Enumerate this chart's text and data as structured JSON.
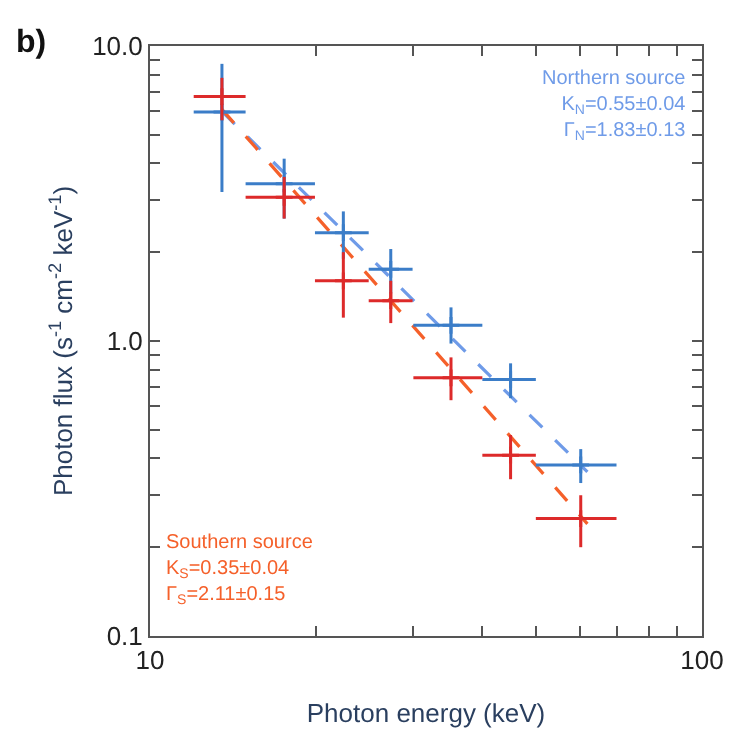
{
  "chart_data": {
    "type": "scatter",
    "xlabel": "Photon energy (keV)",
    "ylabel": "Photon flux (s$^{-1}$ cm$^{-2}$ keV$^{-1}$)",
    "log": "xy",
    "xlim": [
      10,
      100
    ],
    "ylim": [
      0.1,
      10
    ],
    "xticks": [
      10,
      {
        "value": 20,
        "label": null
      },
      {
        "value": 30,
        "label": null
      },
      {
        "value": 40,
        "label": null
      },
      {
        "value": 50,
        "label": null
      },
      {
        "value": 60,
        "label": null
      },
      {
        "value": 70,
        "label": null
      },
      {
        "value": 80,
        "label": null
      },
      {
        "value": 90,
        "label": null
      },
      100
    ],
    "yticks": [
      {
        "value": 0.1,
        "label": "0.1"
      },
      {
        "value": 0.2,
        "label": null
      },
      {
        "value": 0.3,
        "label": null
      },
      {
        "value": 0.4,
        "label": null
      },
      {
        "value": 0.5,
        "label": null
      },
      {
        "value": 0.6,
        "label": null
      },
      {
        "value": 0.7,
        "label": null
      },
      {
        "value": 0.8,
        "label": null
      },
      {
        "value": 0.9,
        "label": null
      },
      {
        "value": 1,
        "label": "1.0"
      },
      {
        "value": 2,
        "label": null
      },
      {
        "value": 3,
        "label": null
      },
      {
        "value": 4,
        "label": null
      },
      {
        "value": 5,
        "label": null
      },
      {
        "value": 6,
        "label": null
      },
      {
        "value": 7,
        "label": null
      },
      {
        "value": 8,
        "label": null
      },
      {
        "value": 9,
        "label": null
      },
      {
        "value": 10,
        "label": "10.0"
      }
    ],
    "series": [
      {
        "type": "line",
        "marker": "none",
        "line_style": "dashed",
        "color": "#6f9be8",
        "x": [
          13.5,
          62
        ],
        "values": [
          6.0,
          0.36
        ]
      },
      {
        "type": "line",
        "marker": "none",
        "line_style": "dashed",
        "color": "#f5602a",
        "x": [
          13.5,
          62
        ],
        "values": [
          6.1,
          0.24
        ]
      },
      {
        "marker": "cross",
        "color": "#3b7dc8",
        "x": [
          13.5,
          17.5,
          22.4,
          27.3,
          35.1,
          45.0,
          60.3
        ],
        "values": [
          5.97,
          3.41,
          2.33,
          1.75,
          1.13,
          0.74,
          0.38
        ],
        "errors": [
          [
            3.2,
            8.7
          ],
          [
            2.6,
            4.15
          ],
          [
            1.9,
            2.75
          ],
          [
            1.45,
            2.05
          ],
          [
            0.98,
            1.3
          ],
          [
            0.64,
            0.84
          ],
          [
            0.33,
            0.43
          ]
        ],
        "xerrors": [
          [
            12.0,
            14.9
          ],
          [
            14.9,
            19.9
          ],
          [
            19.9,
            24.9
          ],
          [
            24.9,
            29.9
          ],
          [
            30,
            40
          ],
          [
            40,
            50
          ],
          [
            50,
            70
          ]
        ]
      },
      {
        "marker": "cross",
        "color": "#dd2a2a",
        "x": [
          13.5,
          17.5,
          22.4,
          27.3,
          35.1,
          45.0,
          60.3
        ],
        "values": [
          6.74,
          3.07,
          1.6,
          1.37,
          0.75,
          0.41,
          0.25
        ],
        "errors": [
          [
            5.6,
            7.8
          ],
          [
            2.6,
            3.6
          ],
          [
            1.2,
            2.0
          ],
          [
            1.15,
            1.6
          ],
          [
            0.63,
            0.88
          ],
          [
            0.34,
            0.48
          ],
          [
            0.2,
            0.3
          ]
        ],
        "xerrors": [
          [
            12.0,
            14.9
          ],
          [
            14.9,
            19.9
          ],
          [
            19.9,
            24.9
          ],
          [
            24.9,
            29.9
          ],
          [
            30,
            40
          ],
          [
            40,
            50
          ],
          [
            50,
            70
          ]
        ]
      }
    ],
    "annotations": [
      "b)",
      "Northern source\nK$_{N}$=0.55±0.04\nΓ$_{N}$=1.83±0.13",
      "Southern source\nK$_{S}$=0.35±0.04\nΓ$_{S}$=2.11±0.15"
    ]
  }
}
